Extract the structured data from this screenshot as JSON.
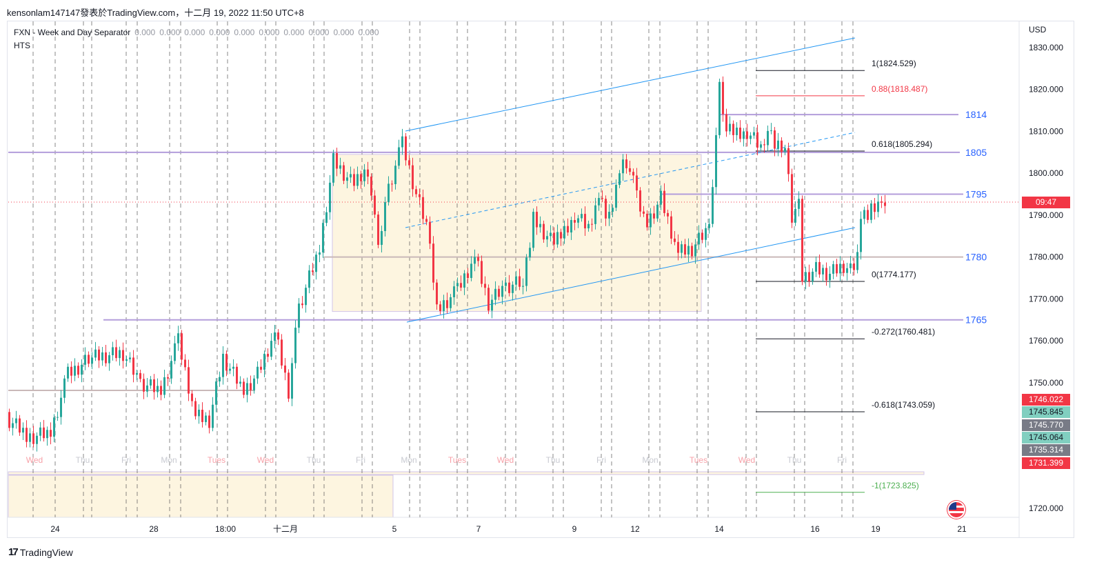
{
  "header": {
    "published": "kensonlam147147發表於TradingView.com，十二月 19, 2022 11:50 UTC+8"
  },
  "legend": {
    "indicator": "FXN - Week and Day Separator",
    "values": [
      "0.000",
      "0.000",
      "0.000",
      "0.000",
      "0.000",
      "0.000",
      "0.000",
      "0.000",
      "0.000",
      "0.000"
    ],
    "second": "HTS"
  },
  "brand": "TradingView",
  "chart_data": {
    "type": "candlestick",
    "currency": "USD",
    "ylim": [
      1716,
      1834
    ],
    "y_ticks": [
      1830,
      1820,
      1810,
      1800,
      1790,
      1780,
      1770,
      1760,
      1750,
      1720
    ],
    "y_tick_labels": [
      "1830.000",
      "1820.000",
      "1810.000",
      "1800.000",
      "1790.000",
      "1780.000",
      "1770.000",
      "1760.000",
      "1750.000",
      "1720.000"
    ],
    "x_labels": [
      "24",
      "28",
      "18:00",
      "十二月",
      "5",
      "7",
      "9",
      "12",
      "14",
      "16",
      "19",
      "21"
    ],
    "day_labels": [
      "Wed",
      "Thu",
      "Fri",
      "Mon",
      "Tues",
      "Wed",
      "Thu",
      "Fri",
      "Mon",
      "Tues",
      "Wed",
      "Thu",
      "Fri",
      "Mon",
      "Tues",
      "Wed",
      "Thu",
      "Fri"
    ],
    "bars": [
      [
        0,
        1741
      ],
      [
        6,
        1737
      ],
      [
        12,
        1738
      ],
      [
        17,
        1752
      ],
      [
        24,
        1756
      ],
      [
        33,
        1757
      ],
      [
        38,
        1750
      ],
      [
        44,
        1748
      ],
      [
        49,
        1760
      ],
      [
        54,
        1742
      ],
      [
        58,
        1741
      ],
      [
        62,
        1756
      ],
      [
        68,
        1748
      ],
      [
        72,
        1752
      ],
      [
        77,
        1762
      ],
      [
        81,
        1748
      ],
      [
        84,
        1768
      ],
      [
        90,
        1782
      ],
      [
        94,
        1803
      ],
      [
        100,
        1797
      ],
      [
        104,
        1801
      ],
      [
        107,
        1782
      ],
      [
        109,
        1794
      ],
      [
        114,
        1807
      ],
      [
        118,
        1795
      ],
      [
        122,
        1785
      ],
      [
        123,
        1773
      ],
      [
        125,
        1768
      ],
      [
        130,
        1772
      ],
      [
        135,
        1780
      ],
      [
        139,
        1769
      ],
      [
        144,
        1773
      ],
      [
        149,
        1774
      ],
      [
        152,
        1789
      ],
      [
        158,
        1783
      ],
      [
        164,
        1790
      ],
      [
        168,
        1787
      ],
      [
        171,
        1795
      ],
      [
        174,
        1789
      ],
      [
        177,
        1800
      ],
      [
        179,
        1803
      ],
      [
        182,
        1795
      ],
      [
        185,
        1788
      ],
      [
        189,
        1794
      ],
      [
        194,
        1781
      ],
      [
        198,
        1782
      ],
      [
        203,
        1787
      ],
      [
        205,
        1810
      ],
      [
        206,
        1820
      ],
      [
        208,
        1810
      ],
      [
        214,
        1810
      ],
      [
        218,
        1806
      ],
      [
        220,
        1811
      ],
      [
        223,
        1806
      ],
      [
        225,
        1806
      ],
      [
        227,
        1790
      ],
      [
        229,
        1793
      ],
      [
        230,
        1775
      ],
      [
        234,
        1777
      ],
      [
        238,
        1776
      ],
      [
        242,
        1778
      ],
      [
        245,
        1776
      ],
      [
        247,
        1790
      ],
      [
        250,
        1791
      ],
      [
        253,
        1793
      ],
      [
        254,
        1794
      ]
    ],
    "current_price_countdown": "09:47",
    "price_labels": [
      {
        "value": "1746.022",
        "color": "#f23645"
      },
      {
        "value": "1745.845",
        "color": "#81cfc0"
      },
      {
        "value": "1745.770",
        "color": "#787b86"
      },
      {
        "value": "1745.064",
        "color": "#81cfc0"
      },
      {
        "value": "1735.314",
        "color": "#787b86"
      },
      {
        "value": "1731.399",
        "color": "#f23645"
      }
    ],
    "horizontal_levels": [
      {
        "price": 1814,
        "label": "1814"
      },
      {
        "price": 1805,
        "label": "1805"
      },
      {
        "price": 1795,
        "label": "1795"
      },
      {
        "price": 1780,
        "label": "1780"
      },
      {
        "price": 1765,
        "label": "1765"
      }
    ],
    "fibonacci": [
      {
        "price": 1824.529,
        "label": "1(1824.529)",
        "color": "#131722"
      },
      {
        "price": 1818.487,
        "label": "0.88(1818.487)",
        "color": "#f23645"
      },
      {
        "price": 1805.294,
        "label": "0.618(1805.294)",
        "color": "#131722"
      },
      {
        "price": 1774.177,
        "label": "0(1774.177)",
        "color": "#131722"
      },
      {
        "price": 1760.481,
        "label": "-0.272(1760.481)",
        "color": "#131722"
      },
      {
        "price": 1743.059,
        "label": "-0.618(1743.059)",
        "color": "#131722"
      },
      {
        "price": 1723.825,
        "label": "-1(1723.825)",
        "color": "#4caf50"
      }
    ],
    "colors": {
      "up": "#26a69a",
      "down": "#f23645",
      "channel": "#2196f3",
      "level": "#b39ddb",
      "box": "#fdf5e0"
    }
  }
}
